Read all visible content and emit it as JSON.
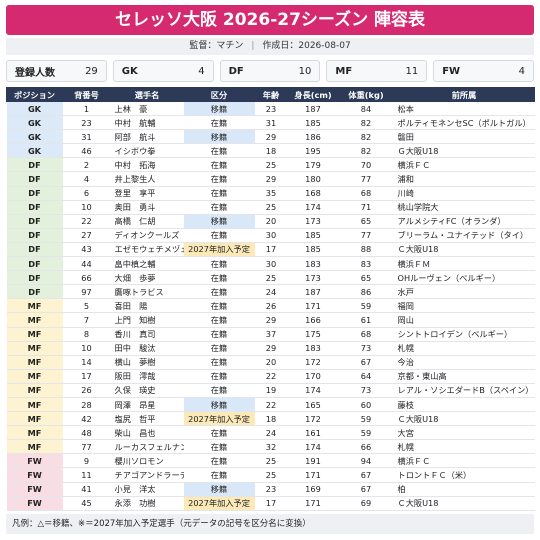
{
  "header": {
    "title": "セレッソ大阪 2026-27シーズン 陣容表",
    "manager": "監督：マチン",
    "created": "作成日：2026-08-07"
  },
  "summary": [
    {
      "label": "登録人数",
      "value": 29
    },
    {
      "label": "GK",
      "value": 4
    },
    {
      "label": "DF",
      "value": 10
    },
    {
      "label": "MF",
      "value": 11
    },
    {
      "label": "FW",
      "value": 4
    }
  ],
  "table": {
    "columns": [
      "ポジション",
      "背番号",
      "選手名",
      "区分",
      "年齢",
      "身長(cm)",
      "体重(kg)",
      "前所属"
    ],
    "position_colors": {
      "GK": "#dce9f8",
      "DF": "#e3f1dc",
      "MF": "#fdf3d0",
      "FW": "#f9dde4"
    },
    "status_colors": {
      "移籍": "#d9e8f8",
      "2027年加入予定": "#fbeab8"
    },
    "rows": [
      [
        "GK",
        1,
        "上林　豪",
        "移籍",
        23,
        187,
        84,
        "松本"
      ],
      [
        "GK",
        23,
        "中村　航輔",
        "在籍",
        31,
        185,
        82,
        "ポルティモネンセSC（ポルトガル）"
      ],
      [
        "GK",
        31,
        "阿部　航斗",
        "移籍",
        29,
        186,
        82,
        "磐田"
      ],
      [
        "GK",
        46,
        "イシボウ拳",
        "在籍",
        18,
        195,
        82,
        "Ｇ大阪U18"
      ],
      [
        "DF",
        2,
        "中村　拓海",
        "在籍",
        25,
        179,
        70,
        "横浜ＦＣ"
      ],
      [
        "DF",
        4,
        "井上黎生人",
        "在籍",
        29,
        180,
        77,
        "浦和"
      ],
      [
        "DF",
        6,
        "登里　享平",
        "在籍",
        35,
        168,
        68,
        "川崎"
      ],
      [
        "DF",
        10,
        "奥田　勇斗",
        "在籍",
        25,
        174,
        71,
        "桃山学院大"
      ],
      [
        "DF",
        22,
        "高橋　仁胡",
        "移籍",
        20,
        173,
        65,
        "アルメシティFC（オランダ）"
      ],
      [
        "DF",
        27,
        "ディオンクールズ",
        "在籍",
        30,
        185,
        77,
        "ブリーラム・ユナイテッド（タイ）"
      ],
      [
        "DF",
        43,
        "エゼモウェチメヅェ海",
        "2027年加入予定",
        17,
        185,
        88,
        "Ｃ大阪U18"
      ],
      [
        "DF",
        44,
        "畠中槙之輔",
        "在籍",
        30,
        183,
        83,
        "横浜ＦＭ"
      ],
      [
        "DF",
        66,
        "大畑　歩夢",
        "在籍",
        25,
        173,
        65,
        "OHルーヴェン（ベルギー）"
      ],
      [
        "DF",
        97,
        "鷹啄トラビス",
        "在籍",
        24,
        187,
        86,
        "水戸"
      ],
      [
        "MF",
        5,
        "喜田　陽",
        "在籍",
        26,
        171,
        59,
        "福岡"
      ],
      [
        "MF",
        7,
        "上門　知樹",
        "在籍",
        29,
        166,
        61,
        "岡山"
      ],
      [
        "MF",
        8,
        "香川　真司",
        "在籍",
        37,
        175,
        68,
        "シントトロイデン（ベルギー）"
      ],
      [
        "MF",
        10,
        "田中　駿汰",
        "在籍",
        29,
        183,
        73,
        "札幌"
      ],
      [
        "MF",
        14,
        "横山　夢樹",
        "在籍",
        20,
        172,
        67,
        "今治"
      ],
      [
        "MF",
        17,
        "阪田　澪哉",
        "在籍",
        22,
        170,
        64,
        "京都・東山高"
      ],
      [
        "MF",
        26,
        "久保　瑛史",
        "在籍",
        19,
        174,
        73,
        "レアル・ソシエダードB（スペイン）"
      ],
      [
        "MF",
        28,
        "岡澤　昂星",
        "移籍",
        22,
        165,
        60,
        "藤枝"
      ],
      [
        "MF",
        42,
        "塩尻　哲平",
        "2027年加入予定",
        18,
        172,
        59,
        "Ｃ大阪U18"
      ],
      [
        "MF",
        48,
        "柴山　昌也",
        "在籍",
        24,
        161,
        59,
        "大宮"
      ],
      [
        "MF",
        77,
        "ルーカスフェルナンデス",
        "在籍",
        32,
        174,
        66,
        "札幌"
      ],
      [
        "FW",
        9,
        "櫻川ソロモン",
        "在籍",
        25,
        191,
        94,
        "横浜ＦＣ"
      ],
      [
        "FW",
        11,
        "チアゴアンドラーデ",
        "在籍",
        25,
        171,
        67,
        "トロントＦＣ（米）"
      ],
      [
        "FW",
        41,
        "小見　洋太",
        "移籍",
        23,
        169,
        67,
        "柏"
      ],
      [
        "FW",
        45,
        "永添　功樹",
        "2027年加入予定",
        17,
        171,
        69,
        "Ｃ大阪U18"
      ]
    ]
  },
  "footer": "凡例：△＝移籍、※＝2027年加入予定選手（元データの記号を区分名に変換）"
}
